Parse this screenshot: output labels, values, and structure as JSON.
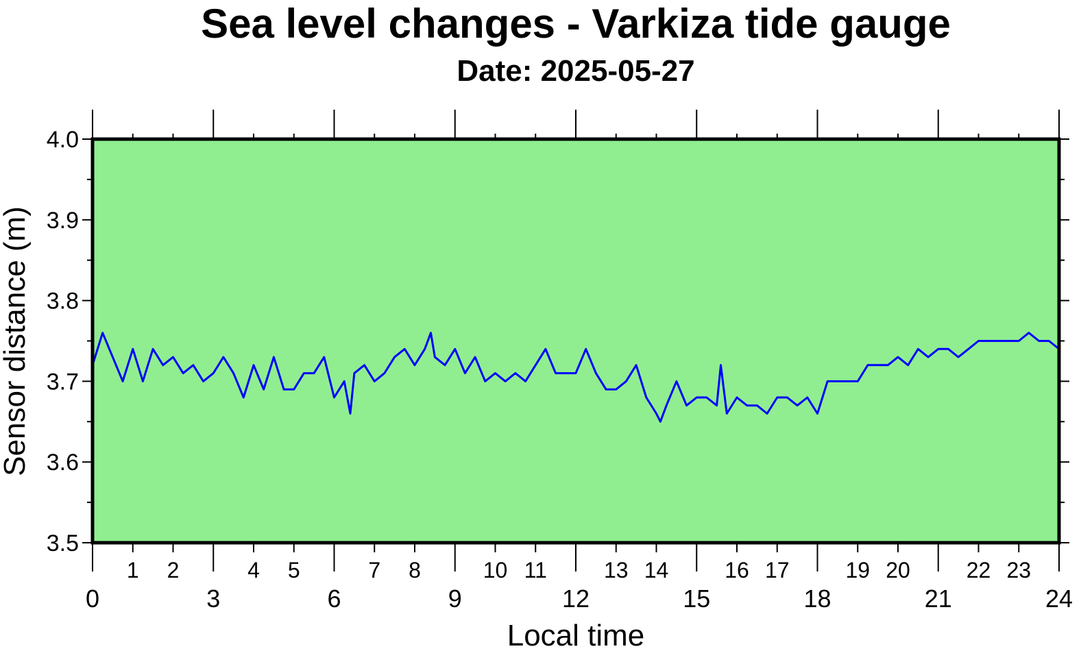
{
  "chart_data": {
    "type": "line",
    "title": "Sea level changes - Varkiza tide gauge",
    "subtitle": "Date: 2025-05-27",
    "x_label": "Local time",
    "y_label": "Sensor distance (m)",
    "background": "#90ee90",
    "color": "#0000ff",
    "xlim": [
      0,
      24
    ],
    "ylim": [
      3.5,
      4.0
    ],
    "xticks": [
      0,
      3,
      6,
      9,
      12,
      15,
      18,
      21,
      24
    ],
    "xticks_minor": [
      1,
      2,
      4,
      5,
      7,
      8,
      10,
      11,
      13,
      14,
      16,
      17,
      19,
      20,
      22,
      23
    ],
    "yticks": [
      3.5,
      3.6,
      3.7,
      3.8,
      3.9,
      {
        "value": 4,
        "label": "4.0"
      }
    ],
    "yticks_minor": [
      3.55,
      3.65,
      3.75,
      3.85,
      3.95
    ],
    "x": [
      0,
      0.25,
      0.5,
      0.75,
      1,
      1.25,
      1.5,
      1.75,
      2,
      2.25,
      2.5,
      2.75,
      3,
      3.25,
      3.5,
      3.75,
      4,
      4.25,
      4.5,
      4.75,
      5,
      5.25,
      5.5,
      5.75,
      6,
      6.25,
      6.4,
      6.5,
      6.75,
      7,
      7.25,
      7.5,
      7.75,
      8,
      8.25,
      8.4,
      8.5,
      8.75,
      9,
      9.25,
      9.5,
      9.75,
      10,
      10.25,
      10.5,
      10.75,
      11,
      11.25,
      11.5,
      11.75,
      12,
      12.25,
      12.5,
      12.75,
      13,
      13.25,
      13.5,
      13.75,
      14,
      14.1,
      14.25,
      14.5,
      14.75,
      15,
      15.25,
      15.5,
      15.6,
      15.75,
      16,
      16.25,
      16.5,
      16.75,
      17,
      17.25,
      17.5,
      17.75,
      18,
      18.25,
      18.5,
      18.75,
      19,
      19.25,
      19.5,
      19.75,
      20,
      20.25,
      20.5,
      20.75,
      21,
      21.25,
      21.5,
      21.75,
      22,
      22.25,
      22.5,
      22.75,
      23,
      23.25,
      23.5,
      23.75,
      24
    ],
    "values": [
      3.72,
      3.76,
      3.73,
      3.7,
      3.74,
      3.7,
      3.74,
      3.72,
      3.73,
      3.71,
      3.72,
      3.7,
      3.71,
      3.73,
      3.71,
      3.68,
      3.72,
      3.69,
      3.73,
      3.69,
      3.69,
      3.71,
      3.71,
      3.73,
      3.68,
      3.7,
      3.66,
      3.71,
      3.72,
      3.7,
      3.71,
      3.73,
      3.74,
      3.72,
      3.74,
      3.76,
      3.73,
      3.72,
      3.74,
      3.71,
      3.73,
      3.7,
      3.71,
      3.7,
      3.71,
      3.7,
      3.72,
      3.74,
      3.71,
      3.71,
      3.71,
      3.74,
      3.71,
      3.69,
      3.69,
      3.7,
      3.72,
      3.68,
      3.66,
      3.65,
      3.67,
      3.7,
      3.67,
      3.68,
      3.68,
      3.67,
      3.72,
      3.66,
      3.68,
      3.67,
      3.67,
      3.66,
      3.68,
      3.68,
      3.67,
      3.68,
      3.66,
      3.7,
      3.7,
      3.7,
      3.7,
      3.72,
      3.72,
      3.72,
      3.73,
      3.72,
      3.74,
      3.73,
      3.74,
      3.74,
      3.73,
      3.74,
      3.75,
      3.75,
      3.75,
      3.75,
      3.75,
      3.76,
      3.75,
      3.75,
      3.74
    ]
  }
}
